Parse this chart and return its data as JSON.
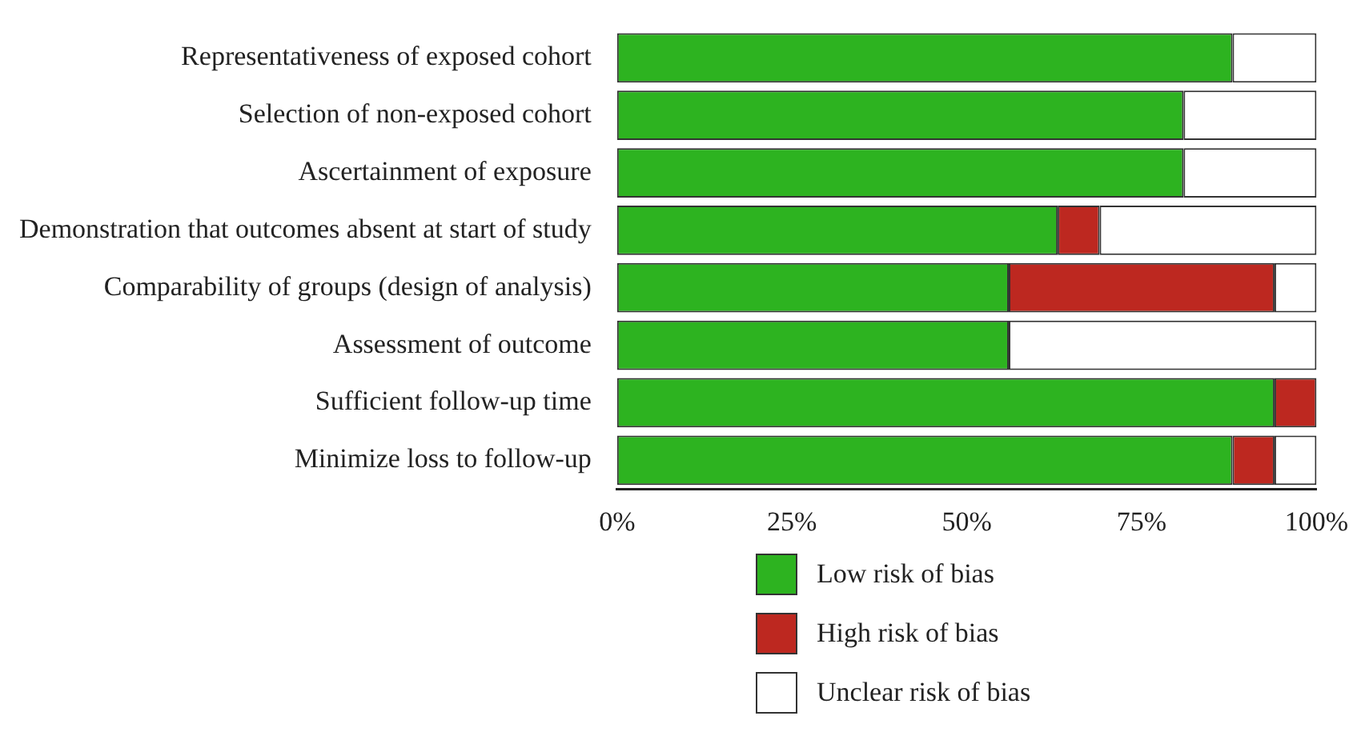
{
  "chart_data": {
    "type": "bar",
    "orientation": "horizontal",
    "stacked": true,
    "categories": [
      "Representativeness of exposed cohort",
      "Selection of non-exposed cohort",
      "Ascertainment of exposure",
      "Demonstration that outcomes absent at start of study",
      "Comparability of groups (design of analysis)",
      "Assessment of outcome",
      "Sufficient follow-up time",
      "Minimize loss to follow-up"
    ],
    "series": [
      {
        "name": "Low risk of bias",
        "color": "#2db320",
        "values": [
          88,
          81,
          81,
          63,
          56,
          56,
          94,
          88
        ]
      },
      {
        "name": "High risk of bias",
        "color": "#bd2820",
        "values": [
          0,
          0,
          0,
          6,
          38,
          0,
          6,
          6
        ]
      },
      {
        "name": "Unclear risk of bias",
        "color": "#ffffff",
        "values": [
          12,
          19,
          19,
          31,
          6,
          44,
          0,
          6
        ]
      }
    ],
    "xlim": [
      0,
      100
    ],
    "xticks": [
      {
        "value": 0,
        "label": "0%"
      },
      {
        "value": 25,
        "label": "25%"
      },
      {
        "value": 50,
        "label": "50%"
      },
      {
        "value": 75,
        "label": "75%"
      },
      {
        "value": 100,
        "label": "100%"
      }
    ],
    "grid": false,
    "legend": "bottom"
  }
}
